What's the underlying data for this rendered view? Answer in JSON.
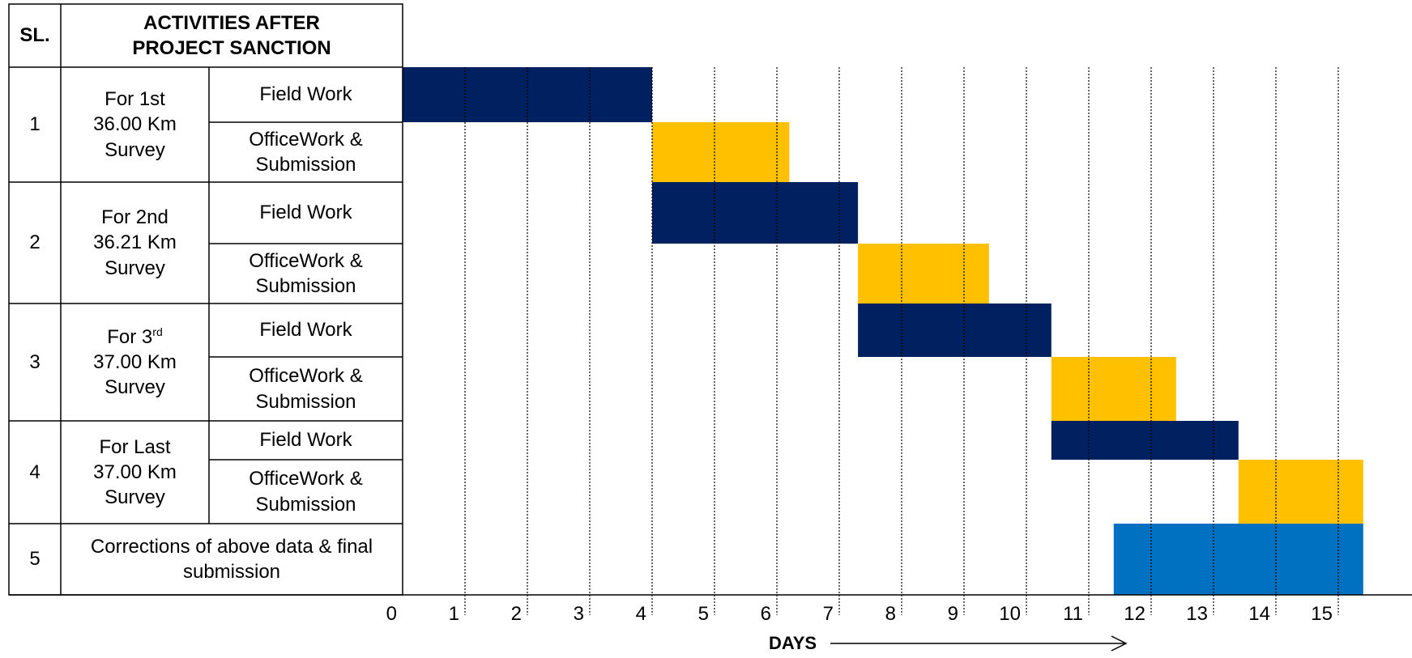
{
  "table": {
    "header_sl": "SL.",
    "header_activities": "ACTIVITIES AFTER PROJECT SANCTION",
    "groups": [
      {
        "sl": "1",
        "name_line1": "For 1st",
        "name_sup": "",
        "name_line2": "36.00 Km",
        "name_line3": "Survey"
      },
      {
        "sl": "2",
        "name_line1": "For 2nd",
        "name_sup": "",
        "name_line2": "36.21 Km",
        "name_line3": "Survey"
      },
      {
        "sl": "3",
        "name_line1": "For 3",
        "name_sup": "rd",
        "name_line2": "37.00 Km",
        "name_line3": "Survey"
      },
      {
        "sl": "4",
        "name_line1": "For Last",
        "name_sup": "",
        "name_line2": "37.00 Km",
        "name_line3": "Survey"
      }
    ],
    "field_work": "Field Work",
    "office_work": "OfficeWork & Submission",
    "row5_sl": "5",
    "row5_text": "Corrections of above data & final submission"
  },
  "colors": {
    "field": "#002060",
    "office": "#FFC000",
    "correction": "#0070C0",
    "grid": "#000000"
  },
  "chart_data": {
    "type": "bar",
    "subtype": "gantt",
    "xlabel": "DAYS",
    "xlim": [
      0,
      15
    ],
    "ticks": [
      0,
      1,
      2,
      3,
      4,
      5,
      6,
      7,
      8,
      9,
      10,
      11,
      12,
      13,
      14,
      15
    ],
    "tasks": [
      {
        "task": "1 Field Work",
        "start": 0,
        "end": 4,
        "type": "field"
      },
      {
        "task": "1 OfficeWork & Submission",
        "start": 4,
        "end": 6.2,
        "type": "office"
      },
      {
        "task": "2 Field Work",
        "start": 4,
        "end": 7.3,
        "type": "field"
      },
      {
        "task": "2 OfficeWork & Submission",
        "start": 7.3,
        "end": 9.4,
        "type": "office"
      },
      {
        "task": "3 Field Work",
        "start": 7.3,
        "end": 10.4,
        "type": "field"
      },
      {
        "task": "3 OfficeWork & Submission",
        "start": 10.4,
        "end": 12.4,
        "type": "office"
      },
      {
        "task": "4 Field Work",
        "start": 10.4,
        "end": 13.4,
        "type": "field"
      },
      {
        "task": "4 OfficeWork & Submission",
        "start": 13.4,
        "end": 15.4,
        "type": "office"
      },
      {
        "task": "5 Corrections of above data & final submission",
        "start": 11.4,
        "end": 15.4,
        "type": "correction"
      }
    ]
  }
}
